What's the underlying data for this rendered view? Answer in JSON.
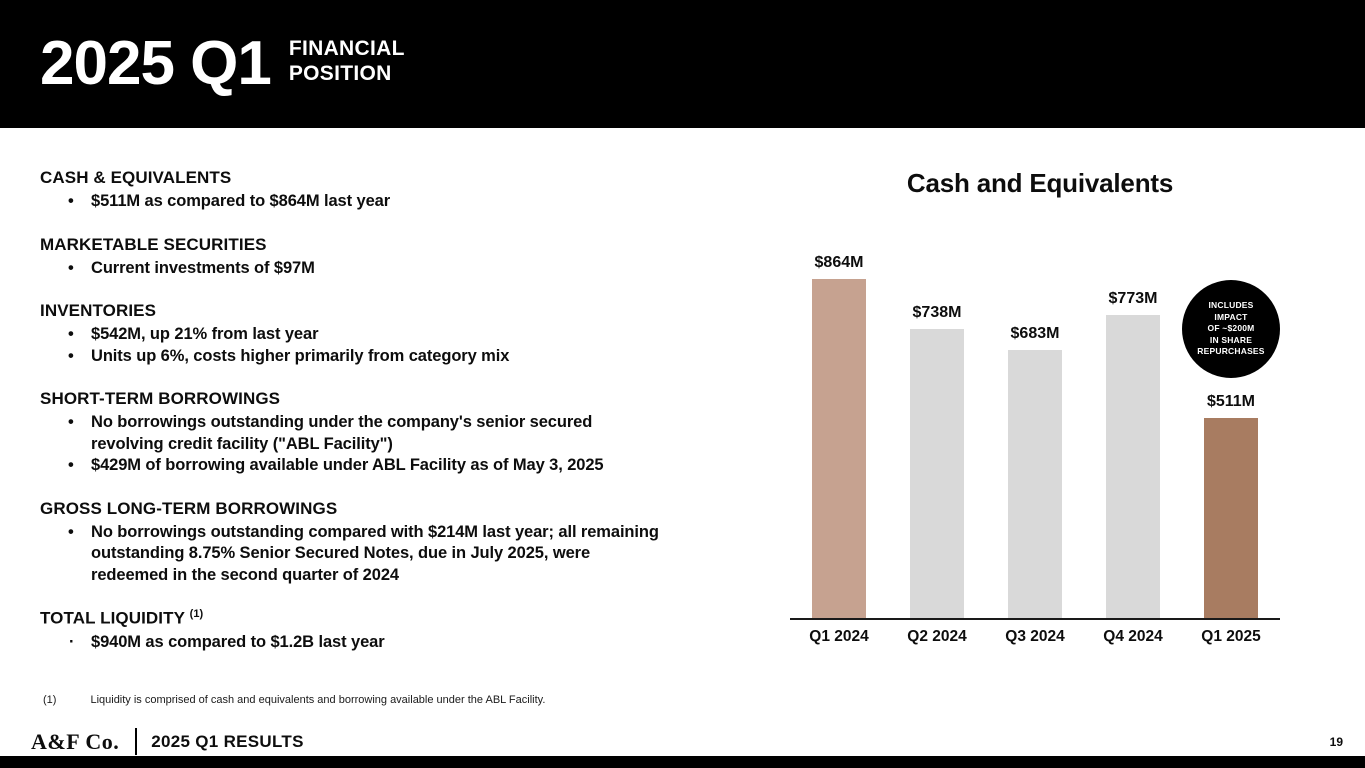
{
  "header": {
    "title": "2025 Q1",
    "subtitle_line1": "FINANCIAL",
    "subtitle_line2": "POSITION"
  },
  "sections": [
    {
      "heading": "CASH & EQUIVALENTS",
      "bullets": [
        "$511M as compared to $864M last year"
      ]
    },
    {
      "heading": "MARKETABLE SECURITIES",
      "bullets": [
        "Current investments of $97M"
      ]
    },
    {
      "heading": "INVENTORIES",
      "bullets": [
        "$542M, up 21% from last year",
        "Units up 6%, costs higher primarily from category mix"
      ]
    },
    {
      "heading": "SHORT-TERM BORROWINGS",
      "bullets": [
        "No borrowings outstanding under the company's senior secured\nrevolving credit facility (\"ABL Facility\")",
        "$429M of borrowing available under ABL Facility as of May 3, 2025"
      ]
    },
    {
      "heading": "GROSS LONG-TERM BORROWINGS",
      "bullets": [
        "No borrowings outstanding compared with $214M last year; all remaining\noutstanding 8.75% Senior Secured Notes, due in July 2025, were\nredeemed in the second quarter of 2024"
      ]
    },
    {
      "heading": "TOTAL LIQUIDITY",
      "heading_sup": "(1)",
      "bullets": [
        "$940M as compared to $1.2B last year"
      ]
    }
  ],
  "footnote": {
    "marker": "(1)",
    "text": "Liquidity is comprised of cash and equivalents and borrowing available under the ABL Facility."
  },
  "footer": {
    "logo": "A&F Co.",
    "label": "2025 Q1 RESULTS",
    "page_number": "19"
  },
  "badge": {
    "lines": [
      "INCLUDES",
      "IMPACT",
      "OF ~$200M",
      "IN SHARE",
      "REPURCHASES"
    ]
  },
  "chart_data": {
    "type": "bar",
    "title": "Cash and Equivalents",
    "categories": [
      "Q1 2024",
      "Q2 2024",
      "Q3 2024",
      "Q4 2024",
      "Q1 2025"
    ],
    "values": [
      864,
      738,
      683,
      773,
      511
    ],
    "value_labels": [
      "$864M",
      "$738M",
      "$683M",
      "$773M",
      "$511M"
    ],
    "bar_colors": [
      "#c6a290",
      "#d9d9d9",
      "#d9d9d9",
      "#d9d9d9",
      "#a87c61"
    ],
    "ylim": [
      0,
      900
    ],
    "xlabel": "",
    "ylabel": "",
    "grid": false,
    "legend": "none",
    "annotation": "INCLUDES IMPACT OF ~$200M IN SHARE REPURCHASES"
  }
}
